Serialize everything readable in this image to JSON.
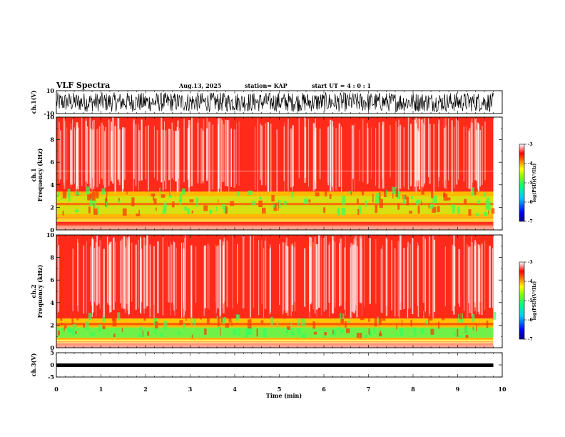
{
  "header": {
    "title": "VLF Spectra",
    "date": "Aug.13, 2025",
    "station": "station= KAP",
    "start": "start  UT =   4 : 0  : 1"
  },
  "chart_data": [
    {
      "name": "ch1-waveform",
      "type": "line",
      "ylabel": "ch.1(V)",
      "ylim": [
        -10,
        10
      ],
      "yticks": [
        "10",
        "-10"
      ],
      "xlim": [
        0,
        10
      ]
    },
    {
      "name": "ch1-spectrogram",
      "type": "heatmap",
      "ylabel_line1": "ch.1",
      "ylabel_line2": "Frequency  (kHz)",
      "ylim": [
        0,
        10
      ],
      "yticks": [
        "0",
        "2",
        "4",
        "6",
        "8",
        "10"
      ],
      "xlim": [
        0,
        10
      ],
      "colorbar": {
        "label": "log(PSD)(V²/Hz)",
        "range": [
          -7,
          -3
        ],
        "ticks": [
          "-3",
          "-4",
          "-5",
          "-6",
          "-7"
        ]
      }
    },
    {
      "name": "ch2-spectrogram",
      "type": "heatmap",
      "ylabel_line1": "ch.2",
      "ylabel_line2": "Frequency  (kHz)",
      "ylim": [
        0,
        10
      ],
      "yticks": [
        "0",
        "2",
        "4",
        "6",
        "8",
        "10"
      ],
      "xlim": [
        0,
        10
      ],
      "colorbar": {
        "label": "log(PSD)(V²/Hz)",
        "range": [
          -7,
          -3
        ],
        "ticks": [
          "-3",
          "-4",
          "-5",
          "-6",
          "-7"
        ]
      }
    },
    {
      "name": "ch3-waveform",
      "type": "line",
      "ylabel": "ch.3(V)",
      "ylim": [
        -5,
        5
      ],
      "yticks": [
        "5",
        "0",
        "-5"
      ],
      "xlim": [
        0,
        10
      ]
    }
  ],
  "xaxis": {
    "label": "Time  (min)",
    "ticks": [
      "0",
      "1",
      "2",
      "3",
      "4",
      "5",
      "6",
      "7",
      "8",
      "9",
      "10"
    ],
    "data_end_min": 9.8
  },
  "colors": {
    "frame": "#000000",
    "colormap": [
      "#000080",
      "#0000ff",
      "#00c8ff",
      "#00ff80",
      "#80ff00",
      "#ffff00",
      "#ff8000",
      "#ff0000",
      "#ffffff"
    ]
  }
}
